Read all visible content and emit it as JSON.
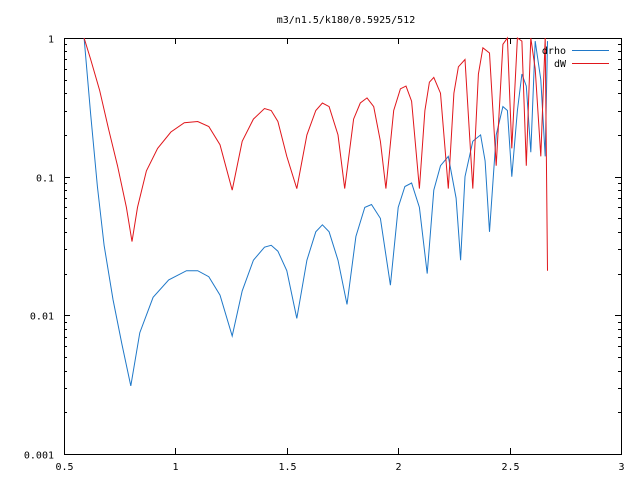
{
  "chart_data": {
    "type": "line",
    "title": "m3/n1.5/k180/0.5925/512",
    "xlabel": "",
    "ylabel": "",
    "xlim": [
      0.5,
      3
    ],
    "ylim": [
      0.001,
      1
    ],
    "yscale": "log",
    "grid": false,
    "legend_position": "top-right",
    "x_ticks": [
      0.5,
      1,
      1.5,
      2,
      2.5,
      3
    ],
    "x_tick_labels": [
      "0.5",
      "1",
      "1.5",
      "2",
      "2.5",
      "3"
    ],
    "y_ticks": [
      0.001,
      0.01,
      0.1,
      1
    ],
    "y_tick_labels": [
      "0.001",
      "0.01",
      "0.1",
      "1"
    ],
    "series": [
      {
        "name": "drho",
        "color": "#1f78c8",
        "x": [
          0.59,
          0.62,
          0.65,
          0.68,
          0.72,
          0.76,
          0.8,
          0.84,
          0.9,
          0.97,
          1.05,
          1.1,
          1.15,
          1.2,
          1.255,
          1.3,
          1.35,
          1.4,
          1.43,
          1.46,
          1.5,
          1.545,
          1.59,
          1.63,
          1.66,
          1.69,
          1.73,
          1.77,
          1.81,
          1.85,
          1.88,
          1.92,
          1.965,
          2.0,
          2.03,
          2.06,
          2.095,
          2.13,
          2.16,
          2.19,
          2.225,
          2.26,
          2.28,
          2.3,
          2.335,
          2.37,
          2.39,
          2.41,
          2.44,
          2.47,
          2.49,
          2.51,
          2.535,
          2.555,
          2.575,
          2.595,
          2.615,
          2.64,
          2.66,
          2.67
        ],
        "y": [
          1.0,
          0.28,
          0.085,
          0.032,
          0.013,
          0.0062,
          0.0031,
          0.0075,
          0.0135,
          0.018,
          0.021,
          0.021,
          0.019,
          0.014,
          0.0071,
          0.015,
          0.025,
          0.031,
          0.032,
          0.029,
          0.021,
          0.0095,
          0.025,
          0.04,
          0.045,
          0.04,
          0.025,
          0.012,
          0.037,
          0.06,
          0.063,
          0.05,
          0.0165,
          0.06,
          0.085,
          0.09,
          0.06,
          0.02,
          0.08,
          0.12,
          0.14,
          0.07,
          0.025,
          0.1,
          0.18,
          0.2,
          0.13,
          0.04,
          0.2,
          0.32,
          0.3,
          0.1,
          0.3,
          0.55,
          0.45,
          0.15,
          0.95,
          0.5,
          0.14,
          0.95
        ]
      },
      {
        "name": "dW",
        "color": "#e0161b",
        "x": [
          0.59,
          0.62,
          0.66,
          0.7,
          0.74,
          0.78,
          0.805,
          0.83,
          0.87,
          0.92,
          0.98,
          1.04,
          1.1,
          1.15,
          1.2,
          1.255,
          1.3,
          1.35,
          1.4,
          1.43,
          1.46,
          1.5,
          1.545,
          1.59,
          1.63,
          1.66,
          1.69,
          1.73,
          1.76,
          1.8,
          1.83,
          1.86,
          1.89,
          1.92,
          1.945,
          1.98,
          2.01,
          2.035,
          2.06,
          2.095,
          2.12,
          2.14,
          2.16,
          2.19,
          2.225,
          2.25,
          2.27,
          2.3,
          2.335,
          2.36,
          2.38,
          2.41,
          2.44,
          2.47,
          2.49,
          2.51,
          2.535,
          2.555,
          2.575,
          2.595,
          2.615,
          2.64,
          2.66,
          2.67
        ],
        "y": [
          1.0,
          0.7,
          0.42,
          0.22,
          0.12,
          0.06,
          0.034,
          0.06,
          0.11,
          0.16,
          0.21,
          0.245,
          0.25,
          0.23,
          0.17,
          0.08,
          0.18,
          0.26,
          0.31,
          0.3,
          0.25,
          0.14,
          0.082,
          0.2,
          0.3,
          0.34,
          0.32,
          0.2,
          0.082,
          0.26,
          0.34,
          0.37,
          0.32,
          0.18,
          0.082,
          0.3,
          0.43,
          0.45,
          0.35,
          0.082,
          0.3,
          0.48,
          0.52,
          0.4,
          0.082,
          0.4,
          0.62,
          0.7,
          0.082,
          0.55,
          0.85,
          0.78,
          0.12,
          0.9,
          1.0,
          0.16,
          1.0,
          0.95,
          0.12,
          1.0,
          0.6,
          0.14,
          1.0,
          0.021
        ]
      }
    ]
  }
}
